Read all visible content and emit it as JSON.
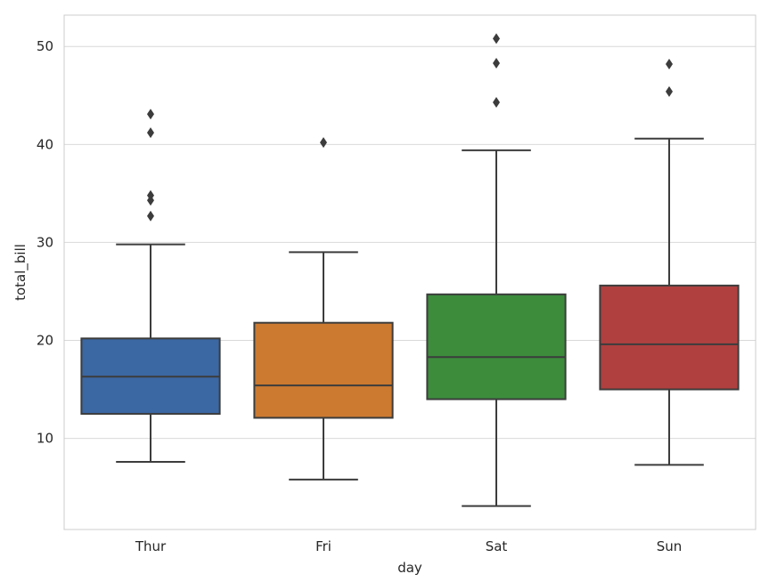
{
  "chart_data": {
    "type": "box",
    "title": "",
    "xlabel": "day",
    "ylabel": "total_bill",
    "categories": [
      "Thur",
      "Fri",
      "Sat",
      "Sun"
    ],
    "ylim": [
      0.7,
      53.2
    ],
    "yticks": [
      10,
      20,
      30,
      40,
      50
    ],
    "grid": "horizontal",
    "series": [
      {
        "name": "Thur",
        "color": "#3b67a3",
        "whisker_low": 7.6,
        "q1": 12.5,
        "median": 16.3,
        "q3": 20.2,
        "whisker_high": 29.8,
        "outliers": [
          32.7,
          34.3,
          34.8,
          41.2,
          43.1
        ]
      },
      {
        "name": "Fri",
        "color": "#cc7a30",
        "whisker_low": 5.8,
        "q1": 12.1,
        "median": 15.4,
        "q3": 21.8,
        "whisker_high": 29.0,
        "outliers": [
          40.2
        ]
      },
      {
        "name": "Sat",
        "color": "#3c8c3c",
        "whisker_low": 3.1,
        "q1": 14.0,
        "median": 18.3,
        "q3": 24.7,
        "whisker_high": 39.4,
        "outliers": [
          44.3,
          48.3,
          50.8
        ]
      },
      {
        "name": "Sun",
        "color": "#b04040",
        "whisker_low": 7.3,
        "q1": 15.0,
        "median": 19.6,
        "q3": 25.6,
        "whisker_high": 40.6,
        "outliers": [
          45.4,
          48.2
        ]
      }
    ]
  }
}
